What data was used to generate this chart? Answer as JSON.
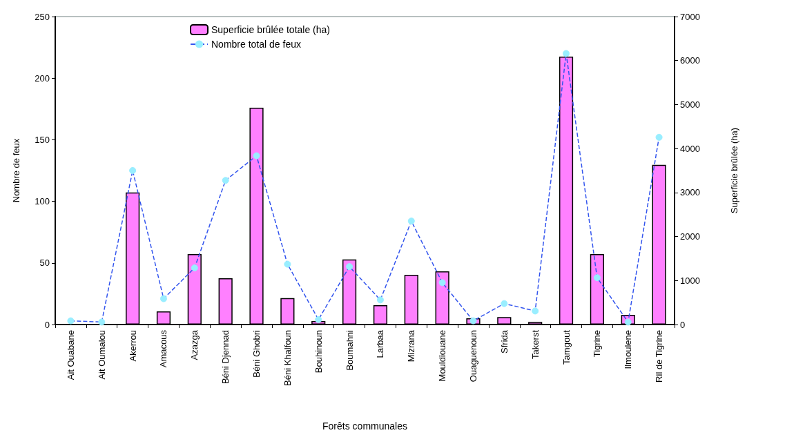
{
  "chart_data": {
    "type": "bar",
    "xlabel": "Forêts communales",
    "ylabel": "Nombre de feux",
    "y2label": "Superficie brûlée (ha)",
    "categories": [
      "Ait Ouabane",
      "Ait Oumalou",
      "Akerrou",
      "Amacous",
      "Azazga",
      "Béni Djennad",
      "Béni Ghobri",
      "Béni Khalfoun",
      "Bouhinoun",
      "Boumahni",
      "Larbaa",
      "Mizrana",
      "Mouldiouane",
      "Ouaguenoun",
      "Sfrida",
      "Takerst",
      "Tamgout",
      "Tigrine",
      "Ilmoulene",
      "Ril de Tigrine"
    ],
    "series": [
      {
        "name": "Superficie brûlée totale (ha)",
        "axis": "y2",
        "color": "#ff80ff",
        "values": [
          0,
          0,
          3000,
          300,
          1600,
          1050,
          4930,
          600,
          80,
          1480,
          440,
          1130,
          1210,
          140,
          170,
          60,
          6090,
          1600,
          220,
          3630
        ]
      },
      {
        "name": "Nombre total de feux",
        "type": "line",
        "axis": "y",
        "color": "#3355ee",
        "marker": "circle",
        "line_style": "dashed",
        "values": [
          3,
          2,
          125,
          21,
          46,
          117,
          137,
          49,
          4,
          47,
          20,
          84,
          34,
          3,
          17,
          11,
          220,
          38,
          2,
          152
        ]
      }
    ],
    "ylim": [
      0,
      250
    ],
    "yticks": [
      0,
      50,
      100,
      150,
      200,
      250
    ],
    "y2lim": [
      0,
      7000
    ],
    "y2ticks": [
      0,
      1000,
      2000,
      3000,
      4000,
      5000,
      6000,
      7000
    ],
    "legend": "top"
  }
}
